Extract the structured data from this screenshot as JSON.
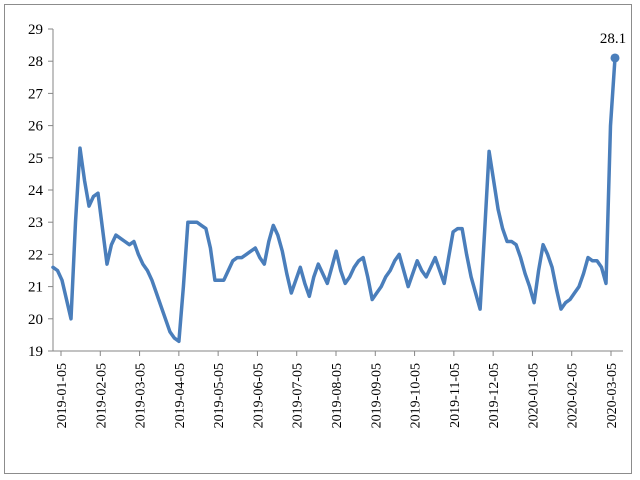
{
  "chart_data": {
    "type": "line",
    "title": "",
    "xlabel": "",
    "ylabel": "",
    "ylim": [
      19,
      29
    ],
    "yticks": [
      19,
      20,
      21,
      22,
      23,
      24,
      25,
      26,
      27,
      28,
      29
    ],
    "grid": false,
    "legend": "none",
    "x_tick_labels": [
      "2019-01-05",
      "2019-02-05",
      "2019-03-05",
      "2019-04-05",
      "2019-05-05",
      "2019-06-05",
      "2019-07-05",
      "2019-08-05",
      "2019-09-05",
      "2019-10-05",
      "2019-11-05",
      "2019-12-05",
      "2020-01-05",
      "2020-02-05",
      "2020-03-05"
    ],
    "line_color": "#4a7ebb",
    "series": [
      {
        "values": [
          21.6,
          21.5,
          21.2,
          20.6,
          20.0,
          23.0,
          25.3,
          24.3,
          23.5,
          23.8,
          23.9,
          22.8,
          21.7,
          22.3,
          22.6,
          22.5,
          22.4,
          22.3,
          22.4,
          22.0,
          21.7,
          21.5,
          21.2,
          20.8,
          20.4,
          20.0,
          19.6,
          19.4,
          19.3,
          21.0,
          23.0,
          23.0,
          23.0,
          22.9,
          22.8,
          22.2,
          21.2,
          21.2,
          21.2,
          21.5,
          21.8,
          21.9,
          21.9,
          22.0,
          22.1,
          22.2,
          21.9,
          21.7,
          22.4,
          22.9,
          22.6,
          22.1,
          21.4,
          20.8,
          21.2,
          21.6,
          21.1,
          20.7,
          21.3,
          21.7,
          21.4,
          21.1,
          21.6,
          22.1,
          21.5,
          21.1,
          21.3,
          21.6,
          21.8,
          21.9,
          21.3,
          20.6,
          20.8,
          21.0,
          21.3,
          21.5,
          21.8,
          22.0,
          21.5,
          21.0,
          21.4,
          21.8,
          21.5,
          21.3,
          21.6,
          21.9,
          21.5,
          21.1,
          21.9,
          22.7,
          22.8,
          22.8,
          22.0,
          21.3,
          20.8,
          20.3,
          22.7,
          25.2,
          24.3,
          23.4,
          22.8,
          22.4,
          22.4,
          22.3,
          21.9,
          21.4,
          21.0,
          20.5,
          21.5,
          22.3,
          22.0,
          21.6,
          20.9,
          20.3,
          20.5,
          20.6,
          20.8,
          21.0,
          21.4,
          21.9,
          21.8,
          21.8,
          21.6,
          21.1,
          26.0,
          28.1
        ],
        "last_value_label": "28.1"
      }
    ]
  }
}
